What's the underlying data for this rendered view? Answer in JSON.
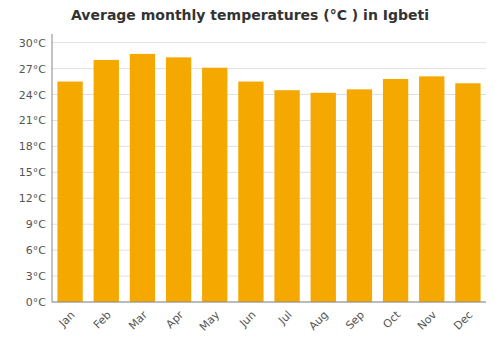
{
  "chart_data": {
    "type": "bar",
    "title": "Average monthly temperatures (°C ) in Igbeti",
    "categories": [
      "Jan",
      "Feb",
      "Mar",
      "Apr",
      "May",
      "Jun",
      "Jul",
      "Aug",
      "Sep",
      "Oct",
      "Nov",
      "Dec"
    ],
    "values": [
      25.5,
      28.0,
      28.7,
      28.3,
      27.1,
      25.5,
      24.5,
      24.2,
      24.6,
      25.8,
      26.1,
      25.3
    ],
    "color": "#F5A800",
    "ylim": [
      0,
      31
    ],
    "yticks": [
      {
        "value": 0,
        "label": "0°C"
      },
      {
        "value": 3,
        "label": "3°C"
      },
      {
        "value": 6,
        "label": "6°C"
      },
      {
        "value": 9,
        "label": "9°C"
      },
      {
        "value": 12,
        "label": "12°C"
      },
      {
        "value": 15,
        "label": "15°C"
      },
      {
        "value": 18,
        "label": "18°C"
      },
      {
        "value": 21,
        "label": "21°C"
      },
      {
        "value": 24,
        "label": "24°C"
      },
      {
        "value": 27,
        "label": "27°C"
      },
      {
        "value": 30,
        "label": "30°C"
      }
    ],
    "grid": true
  }
}
